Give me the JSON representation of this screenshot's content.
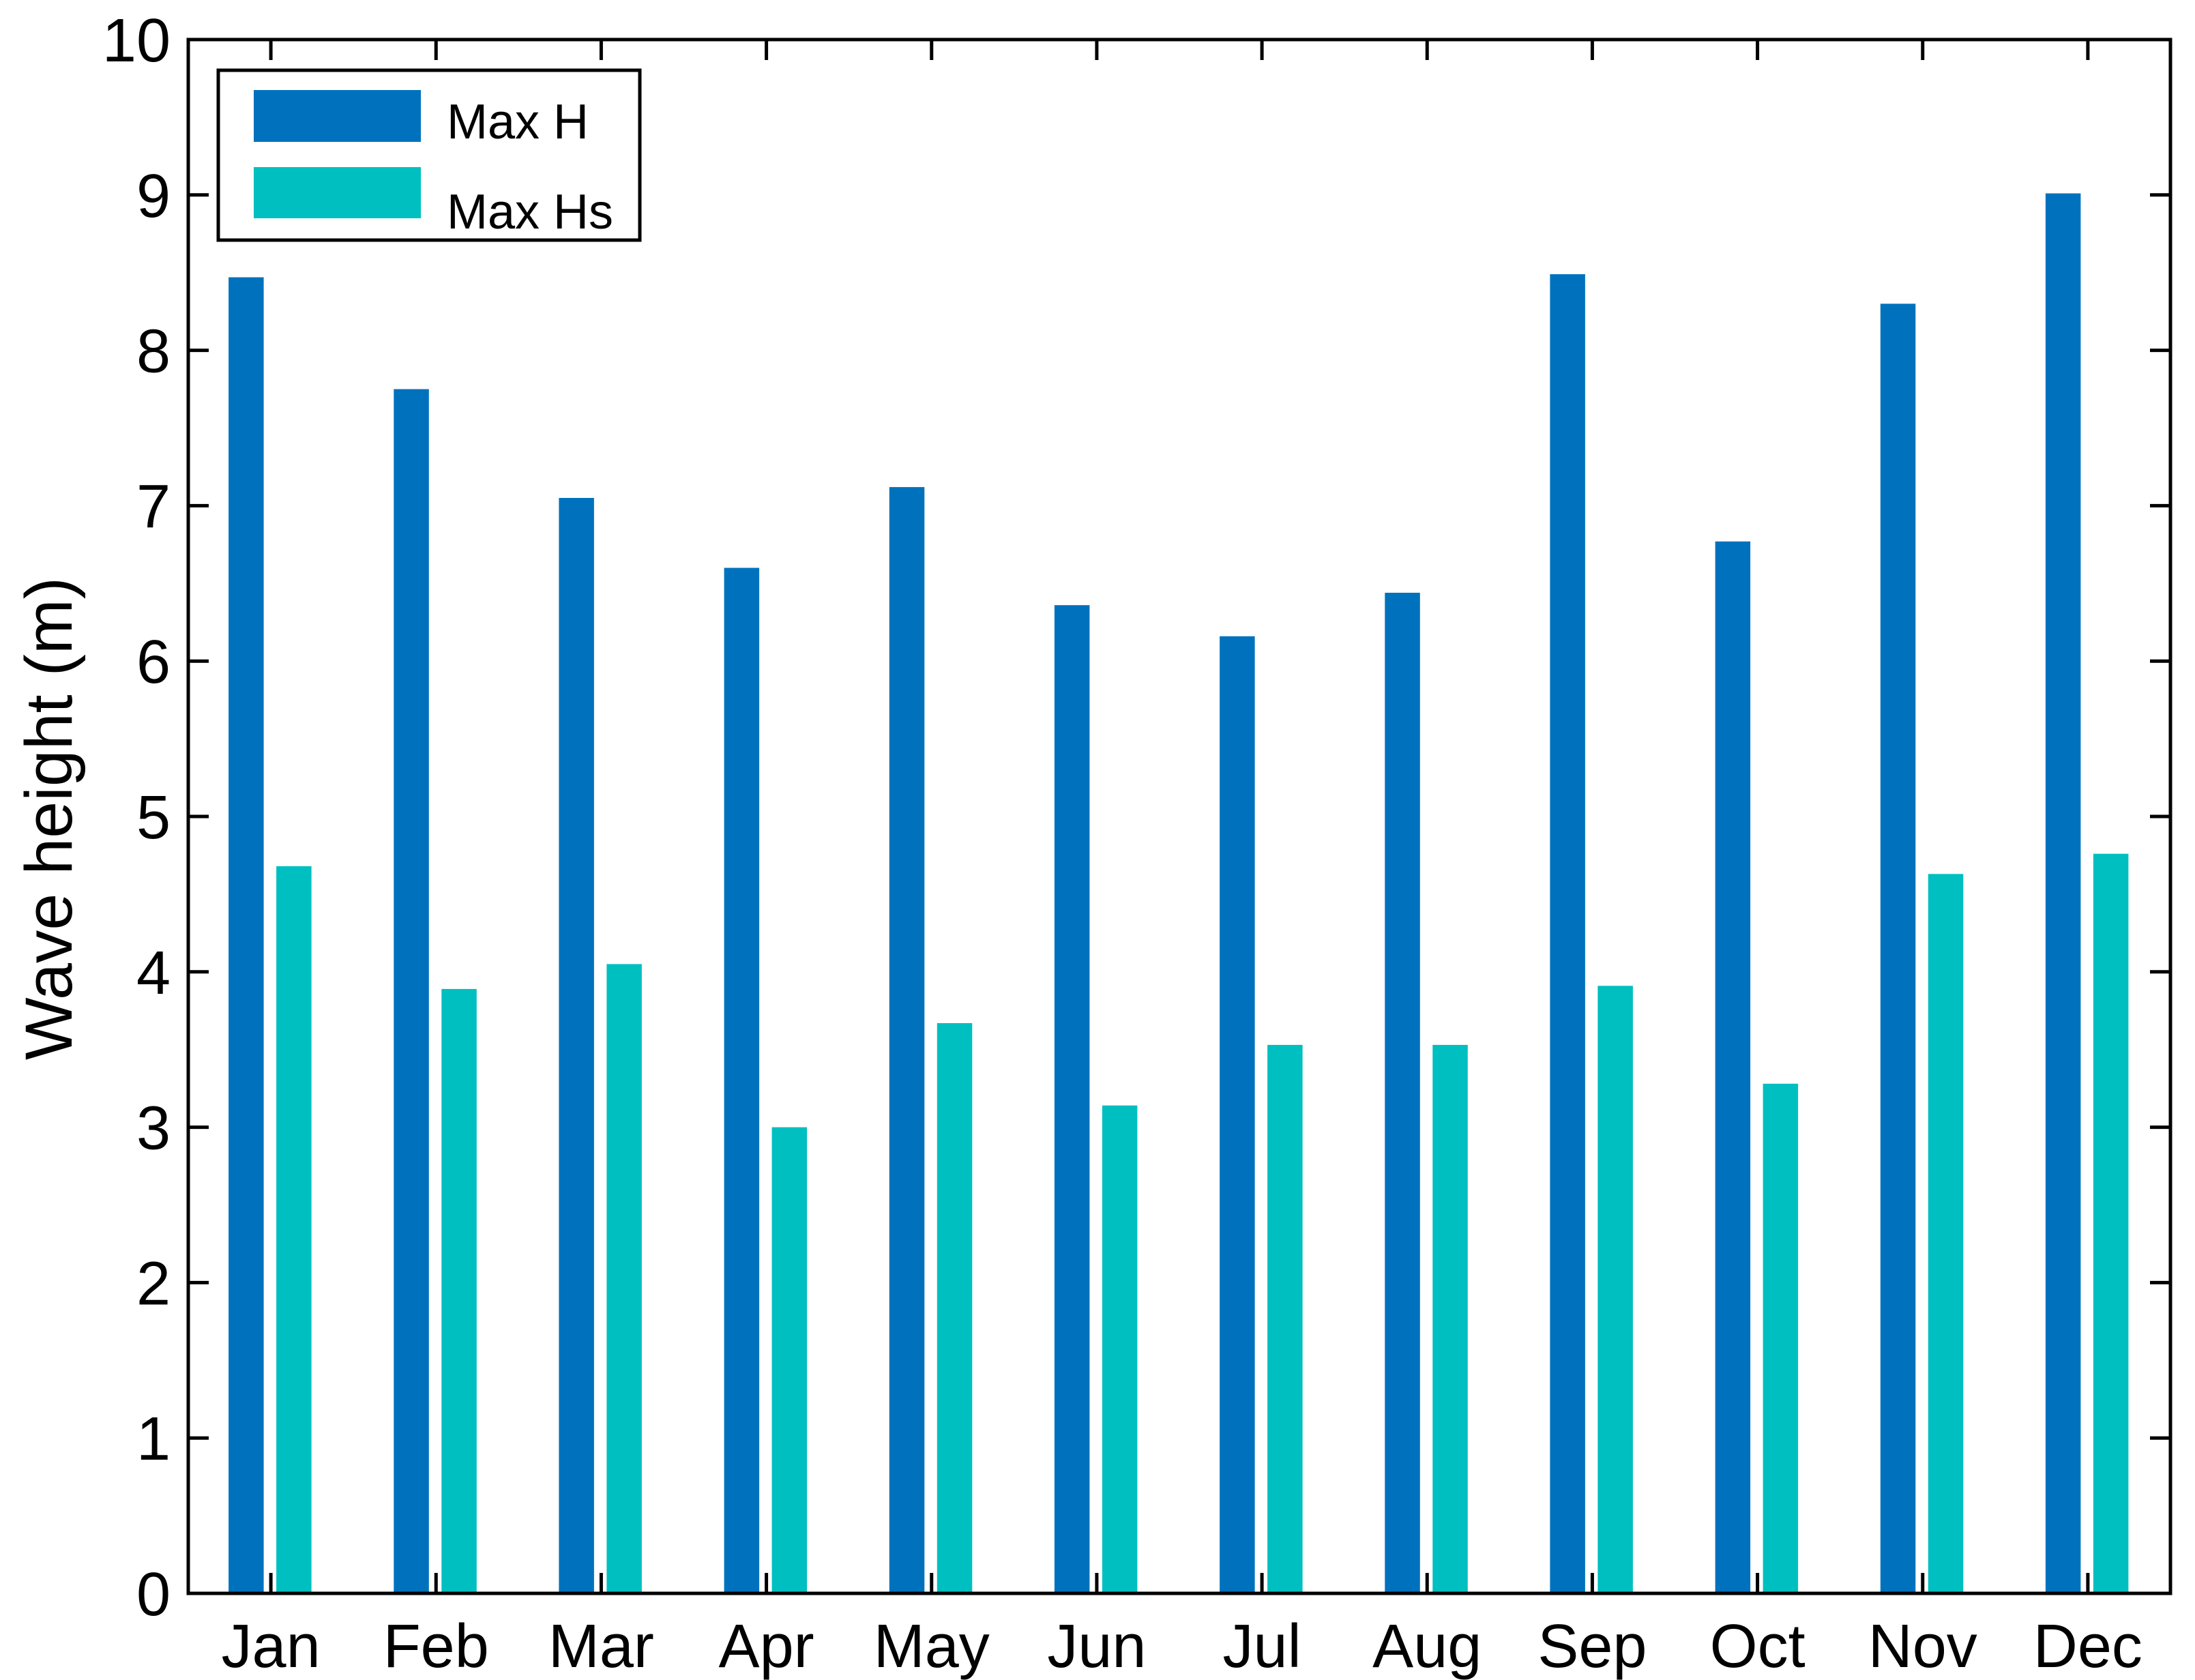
{
  "chart_data": {
    "type": "bar",
    "title": "",
    "xlabel": "",
    "ylabel": "Wave height (m)",
    "categories": [
      "Jan",
      "Feb",
      "Mar",
      "Apr",
      "May",
      "Jun",
      "Jul",
      "Aug",
      "Sep",
      "Oct",
      "Nov",
      "Dec"
    ],
    "series": [
      {
        "name": "Max H",
        "color": "#0072BD",
        "values": [
          8.47,
          7.75,
          7.05,
          6.6,
          7.12,
          6.36,
          6.16,
          6.44,
          8.49,
          6.77,
          8.3,
          9.01
        ]
      },
      {
        "name": "Max Hs",
        "color": "#00BFC0",
        "values": [
          4.68,
          3.89,
          4.05,
          3.0,
          3.67,
          3.14,
          3.53,
          3.53,
          3.91,
          3.28,
          4.63,
          4.76
        ]
      }
    ],
    "ylim": [
      0,
      10
    ],
    "yticks": [
      0,
      1,
      2,
      3,
      4,
      5,
      6,
      7,
      8,
      9,
      10
    ],
    "grid": false,
    "legend_position": "top-left",
    "axis_color": "#000000",
    "background": "#FFFFFF"
  }
}
